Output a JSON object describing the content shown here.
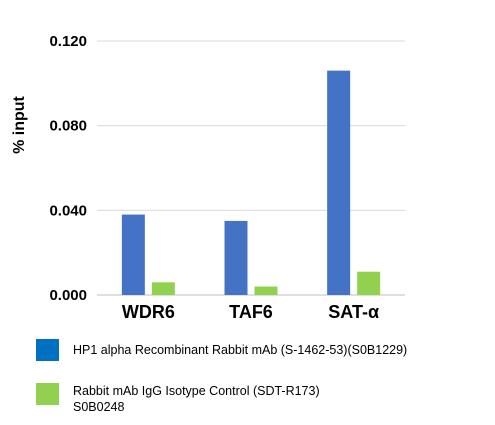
{
  "chart_data": {
    "type": "bar",
    "title": "",
    "xlabel": "",
    "ylabel": "% input",
    "ylim": [
      0,
      0.12
    ],
    "yticks": [
      "0.000",
      "0.040",
      "0.080",
      "0.120"
    ],
    "ytick_values": [
      0,
      0.04,
      0.08,
      0.12
    ],
    "grid": true,
    "legend_position": "bottom",
    "categories": [
      "WDR6",
      "TAF6",
      "SAT-α"
    ],
    "series": [
      {
        "name": "HP1 alpha Recombinant Rabbit mAb (S-1462-53)(S0B1229)",
        "color": "#4472C4",
        "values": [
          0.038,
          0.035,
          0.106
        ]
      },
      {
        "name": "Rabbit mAb IgG Isotype Control (SDT-R173)\nS0B0248",
        "color": "#92D050",
        "values": [
          0.006,
          0.004,
          0.011
        ]
      }
    ]
  }
}
